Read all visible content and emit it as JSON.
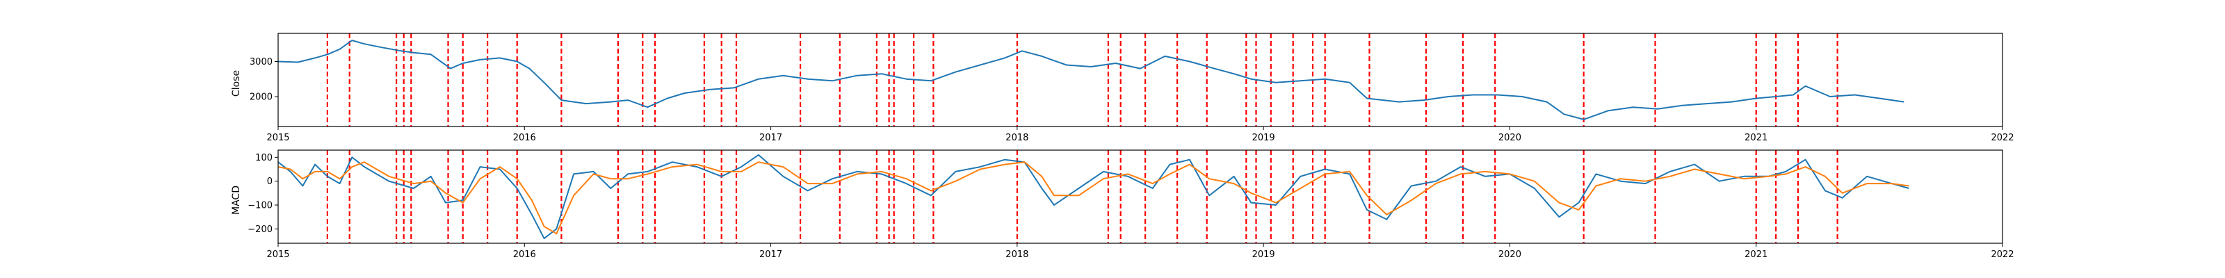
{
  "chart_data": [
    {
      "type": "line",
      "title": "",
      "xlabel": "",
      "ylabel": "Close",
      "xlim": [
        2015.0,
        2022.0
      ],
      "ylim": [
        1150,
        3800
      ],
      "x_ticks": [
        2015,
        2016,
        2017,
        2018,
        2019,
        2020,
        2021,
        2022
      ],
      "x_tick_labels": [
        "2015",
        "2016",
        "2017",
        "2018",
        "2019",
        "2020",
        "2021",
        "2022"
      ],
      "y_ticks": [
        2000,
        3000
      ],
      "y_tick_labels": [
        "2000",
        "3000"
      ],
      "grid": false,
      "series": [
        {
          "color": "#1f77b4",
          "x": [
            2015.0,
            2015.08,
            2015.15,
            2015.2,
            2015.25,
            2015.3,
            2015.35,
            2015.42,
            2015.5,
            2015.55,
            2015.62,
            2015.7,
            2015.75,
            2015.82,
            2015.9,
            2015.97,
            2016.02,
            2016.08,
            2016.15,
            2016.25,
            2016.35,
            2016.42,
            2016.5,
            2016.58,
            2016.65,
            2016.75,
            2016.85,
            2016.95,
            2017.05,
            2017.15,
            2017.25,
            2017.35,
            2017.45,
            2017.55,
            2017.65,
            2017.75,
            2017.85,
            2017.95,
            2018.02,
            2018.1,
            2018.2,
            2018.3,
            2018.4,
            2018.5,
            2018.6,
            2018.7,
            2018.8,
            2018.88,
            2018.95,
            2019.05,
            2019.15,
            2019.25,
            2019.35,
            2019.42,
            2019.55,
            2019.65,
            2019.75,
            2019.85,
            2019.95,
            2020.05,
            2020.15,
            2020.22,
            2020.3,
            2020.4,
            2020.5,
            2020.6,
            2020.7,
            2020.8,
            2020.9,
            2021.0,
            2021.08,
            2021.15,
            2021.2,
            2021.3,
            2021.4,
            2021.5,
            2021.6
          ],
          "y": [
            3000,
            2980,
            3100,
            3200,
            3350,
            3600,
            3500,
            3400,
            3300,
            3250,
            3200,
            2800,
            2950,
            3050,
            3100,
            3000,
            2800,
            2400,
            1900,
            1800,
            1850,
            1900,
            1700,
            1950,
            2100,
            2200,
            2250,
            2500,
            2600,
            2500,
            2450,
            2600,
            2650,
            2500,
            2450,
            2700,
            2900,
            3100,
            3300,
            3150,
            2900,
            2850,
            2950,
            2800,
            3150,
            3000,
            2800,
            2650,
            2500,
            2400,
            2450,
            2500,
            2400,
            1950,
            1850,
            1900,
            2000,
            2050,
            2050,
            2000,
            1850,
            1500,
            1350,
            1600,
            1700,
            1650,
            1750,
            1800,
            1850,
            1950,
            2000,
            2050,
            2300,
            2000,
            2050,
            1950,
            1850
          ]
        }
      ],
      "vlines_color": "#ff0000",
      "vlines_x": [
        2015.2,
        2015.29,
        2015.48,
        2015.51,
        2015.54,
        2015.69,
        2015.75,
        2015.85,
        2015.97,
        2016.15,
        2016.38,
        2016.48,
        2016.53,
        2016.73,
        2016.8,
        2016.86,
        2017.12,
        2017.28,
        2017.43,
        2017.48,
        2017.5,
        2017.58,
        2017.66,
        2018.0,
        2018.37,
        2018.42,
        2018.52,
        2018.65,
        2018.77,
        2018.93,
        2018.97,
        2019.03,
        2019.12,
        2019.2,
        2019.25,
        2019.43,
        2019.66,
        2019.81,
        2019.94,
        2020.3,
        2020.59,
        2021.0,
        2021.08,
        2021.17,
        2021.33
      ]
    },
    {
      "type": "line",
      "title": "",
      "xlabel": "",
      "ylabel": "MACD",
      "xlim": [
        2015.0,
        2022.0
      ],
      "ylim": [
        -260,
        130
      ],
      "x_ticks": [
        2015,
        2016,
        2017,
        2018,
        2019,
        2020,
        2021,
        2022
      ],
      "x_tick_labels": [
        "2015",
        "2016",
        "2017",
        "2018",
        "2019",
        "2020",
        "2021",
        "2022"
      ],
      "y_ticks": [
        -200,
        -100,
        0,
        100
      ],
      "y_tick_labels": [
        "−200",
        "−100",
        "0",
        "100"
      ],
      "grid": false,
      "series": [
        {
          "color": "#1f77b4",
          "x": [
            2015.0,
            2015.05,
            2015.1,
            2015.15,
            2015.2,
            2015.25,
            2015.3,
            2015.35,
            2015.45,
            2015.55,
            2015.62,
            2015.68,
            2015.75,
            2015.82,
            2015.9,
            2015.97,
            2016.03,
            2016.08,
            2016.13,
            2016.2,
            2016.28,
            2016.35,
            2016.42,
            2016.5,
            2016.6,
            2016.7,
            2016.8,
            2016.88,
            2016.95,
            2017.05,
            2017.15,
            2017.25,
            2017.35,
            2017.45,
            2017.55,
            2017.65,
            2017.75,
            2017.85,
            2017.95,
            2018.03,
            2018.1,
            2018.15,
            2018.25,
            2018.35,
            2018.45,
            2018.55,
            2018.62,
            2018.7,
            2018.78,
            2018.88,
            2018.95,
            2019.05,
            2019.15,
            2019.25,
            2019.35,
            2019.42,
            2019.5,
            2019.6,
            2019.7,
            2019.8,
            2019.9,
            2020.0,
            2020.1,
            2020.2,
            2020.28,
            2020.35,
            2020.45,
            2020.55,
            2020.65,
            2020.75,
            2020.85,
            2020.95,
            2021.05,
            2021.12,
            2021.2,
            2021.28,
            2021.35,
            2021.45,
            2021.55,
            2021.62
          ],
          "y": [
            80,
            40,
            -20,
            70,
            20,
            -10,
            100,
            60,
            0,
            -30,
            20,
            -90,
            -80,
            60,
            50,
            -30,
            -140,
            -240,
            -200,
            30,
            40,
            -30,
            30,
            40,
            80,
            60,
            20,
            60,
            110,
            20,
            -40,
            10,
            40,
            30,
            -10,
            -60,
            40,
            60,
            90,
            80,
            -30,
            -100,
            -30,
            40,
            20,
            -30,
            70,
            90,
            -60,
            20,
            -90,
            -100,
            20,
            50,
            30,
            -120,
            -160,
            -20,
            0,
            60,
            20,
            30,
            -30,
            -150,
            -90,
            30,
            0,
            -10,
            40,
            70,
            0,
            20,
            20,
            40,
            90,
            -40,
            -70,
            20,
            -10,
            -30
          ]
        },
        {
          "color": "#ff7f0e",
          "x": [
            2015.0,
            2015.05,
            2015.1,
            2015.15,
            2015.2,
            2015.25,
            2015.3,
            2015.35,
            2015.45,
            2015.55,
            2015.62,
            2015.68,
            2015.75,
            2015.82,
            2015.9,
            2015.97,
            2016.03,
            2016.08,
            2016.13,
            2016.2,
            2016.28,
            2016.35,
            2016.42,
            2016.5,
            2016.6,
            2016.7,
            2016.8,
            2016.88,
            2016.95,
            2017.05,
            2017.15,
            2017.25,
            2017.35,
            2017.45,
            2017.55,
            2017.65,
            2017.75,
            2017.85,
            2017.95,
            2018.03,
            2018.1,
            2018.15,
            2018.25,
            2018.35,
            2018.45,
            2018.55,
            2018.62,
            2018.7,
            2018.78,
            2018.88,
            2018.95,
            2019.05,
            2019.15,
            2019.25,
            2019.35,
            2019.42,
            2019.5,
            2019.6,
            2019.7,
            2019.8,
            2019.9,
            2020.0,
            2020.1,
            2020.2,
            2020.28,
            2020.35,
            2020.45,
            2020.55,
            2020.65,
            2020.75,
            2020.85,
            2020.95,
            2021.05,
            2021.12,
            2021.2,
            2021.28,
            2021.35,
            2021.45,
            2021.55,
            2021.62
          ],
          "y": [
            60,
            50,
            10,
            40,
            40,
            10,
            60,
            80,
            20,
            -10,
            0,
            -50,
            -90,
            10,
            60,
            10,
            -80,
            -190,
            -220,
            -60,
            30,
            10,
            10,
            30,
            60,
            70,
            40,
            40,
            80,
            60,
            -10,
            -10,
            30,
            40,
            10,
            -40,
            0,
            50,
            70,
            80,
            20,
            -60,
            -60,
            10,
            30,
            -10,
            30,
            70,
            10,
            -10,
            -50,
            -90,
            -30,
            30,
            40,
            -60,
            -140,
            -80,
            -10,
            30,
            40,
            30,
            0,
            -90,
            -120,
            -20,
            10,
            0,
            20,
            50,
            30,
            10,
            20,
            30,
            60,
            20,
            -50,
            -10,
            -10,
            -20
          ]
        }
      ],
      "vlines_color": "#ff0000",
      "vlines_x": [
        2015.2,
        2015.29,
        2015.48,
        2015.51,
        2015.54,
        2015.69,
        2015.75,
        2015.85,
        2015.97,
        2016.15,
        2016.38,
        2016.48,
        2016.53,
        2016.73,
        2016.8,
        2016.86,
        2017.12,
        2017.28,
        2017.43,
        2017.48,
        2017.5,
        2017.58,
        2017.66,
        2018.0,
        2018.37,
        2018.42,
        2018.52,
        2018.65,
        2018.77,
        2018.93,
        2018.97,
        2019.03,
        2019.12,
        2019.2,
        2019.25,
        2019.43,
        2019.66,
        2019.81,
        2019.94,
        2020.3,
        2020.59,
        2021.0,
        2021.08,
        2021.17,
        2021.33
      ]
    }
  ]
}
